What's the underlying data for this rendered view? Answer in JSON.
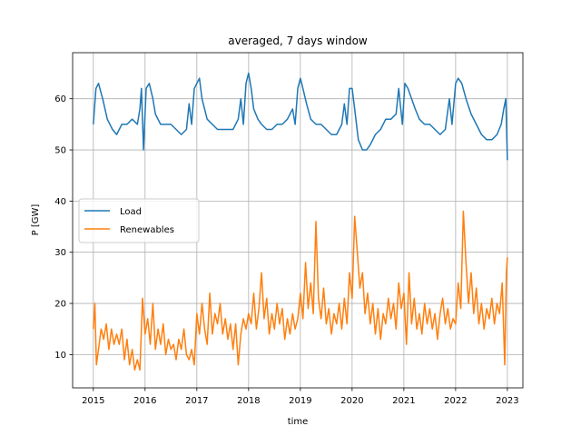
{
  "chart_data": {
    "type": "line",
    "title": "averaged, 7 days window",
    "xlabel": "time",
    "ylabel": "P [GW]",
    "xlim": [
      2014.6,
      2023.3
    ],
    "ylim": [
      3.5,
      69
    ],
    "grid": true,
    "legend": {
      "placement": "center-left",
      "entries": [
        "Load",
        "Renewables"
      ]
    },
    "xticks": [
      2015,
      2016,
      2017,
      2018,
      2019,
      2020,
      2021,
      2022,
      2023
    ],
    "xtick_labels": [
      "2015",
      "2016",
      "2017",
      "2018",
      "2019",
      "2020",
      "2021",
      "2022",
      "2023"
    ],
    "yticks": [
      10,
      20,
      30,
      40,
      50,
      60
    ],
    "ytick_labels": [
      "10",
      "20",
      "30",
      "40",
      "50",
      "60"
    ],
    "series": [
      {
        "name": "Load",
        "color": "#1f77b4",
        "x": [
          2015.0,
          2015.05,
          2015.1,
          2015.18,
          2015.27,
          2015.37,
          2015.45,
          2015.55,
          2015.65,
          2015.75,
          2015.85,
          2015.9,
          2015.93,
          2015.97,
          2016.02,
          2016.08,
          2016.15,
          2016.2,
          2016.3,
          2016.4,
          2016.5,
          2016.6,
          2016.7,
          2016.8,
          2016.85,
          2016.9,
          2016.95,
          2017.0,
          2017.05,
          2017.1,
          2017.2,
          2017.3,
          2017.4,
          2017.5,
          2017.6,
          2017.7,
          2017.8,
          2017.85,
          2017.9,
          2017.95,
          2018.0,
          2018.05,
          2018.1,
          2018.18,
          2018.25,
          2018.35,
          2018.45,
          2018.55,
          2018.65,
          2018.75,
          2018.85,
          2018.9,
          2018.95,
          2019.0,
          2019.05,
          2019.12,
          2019.2,
          2019.3,
          2019.4,
          2019.5,
          2019.6,
          2019.7,
          2019.8,
          2019.85,
          2019.9,
          2019.95,
          2020.0,
          2020.05,
          2020.12,
          2020.2,
          2020.28,
          2020.35,
          2020.45,
          2020.55,
          2020.65,
          2020.75,
          2020.85,
          2020.9,
          2020.97,
          2021.02,
          2021.08,
          2021.15,
          2021.22,
          2021.3,
          2021.4,
          2021.5,
          2021.6,
          2021.7,
          2021.8,
          2021.88,
          2021.93,
          2022.0,
          2022.05,
          2022.12,
          2022.2,
          2022.3,
          2022.4,
          2022.5,
          2022.6,
          2022.7,
          2022.8,
          2022.88,
          2022.93,
          2022.97,
          2023.0
        ],
        "y": [
          55,
          62,
          63,
          60,
          56,
          54,
          53,
          55,
          55,
          56,
          55,
          58,
          62,
          50,
          62,
          63,
          60,
          57,
          55,
          55,
          55,
          54,
          53,
          54,
          59,
          55,
          62,
          63,
          64,
          60,
          56,
          55,
          54,
          54,
          54,
          54,
          56,
          60,
          55,
          63,
          65,
          62,
          58,
          56,
          55,
          54,
          54,
          55,
          55,
          56,
          58,
          55,
          62,
          64,
          62,
          59,
          56,
          55,
          55,
          54,
          53,
          53,
          55,
          59,
          55,
          62,
          62,
          58,
          52,
          50,
          50,
          51,
          53,
          54,
          56,
          56,
          57,
          62,
          55,
          63,
          62,
          60,
          58,
          56,
          55,
          55,
          54,
          53,
          54,
          60,
          55,
          63,
          64,
          63,
          60,
          57,
          55,
          53,
          52,
          52,
          53,
          55,
          58,
          60,
          48
        ]
      },
      {
        "name": "Renewables",
        "color": "#ff7f0e",
        "x": [
          2015.0,
          2015.03,
          2015.06,
          2015.1,
          2015.15,
          2015.2,
          2015.25,
          2015.3,
          2015.35,
          2015.4,
          2015.45,
          2015.5,
          2015.55,
          2015.6,
          2015.65,
          2015.7,
          2015.75,
          2015.8,
          2015.85,
          2015.9,
          2015.95,
          2016.0,
          2016.05,
          2016.1,
          2016.15,
          2016.2,
          2016.25,
          2016.3,
          2016.35,
          2016.4,
          2016.45,
          2016.5,
          2016.55,
          2016.6,
          2016.65,
          2016.7,
          2016.75,
          2016.8,
          2016.85,
          2016.9,
          2016.95,
          2017.0,
          2017.05,
          2017.1,
          2017.15,
          2017.2,
          2017.25,
          2017.3,
          2017.35,
          2017.4,
          2017.45,
          2017.5,
          2017.55,
          2017.6,
          2017.65,
          2017.7,
          2017.75,
          2017.8,
          2017.85,
          2017.9,
          2017.95,
          2018.0,
          2018.05,
          2018.1,
          2018.15,
          2018.2,
          2018.25,
          2018.3,
          2018.35,
          2018.4,
          2018.45,
          2018.5,
          2018.55,
          2018.6,
          2018.65,
          2018.7,
          2018.75,
          2018.8,
          2018.85,
          2018.9,
          2018.95,
          2019.0,
          2019.05,
          2019.1,
          2019.15,
          2019.2,
          2019.25,
          2019.3,
          2019.35,
          2019.4,
          2019.45,
          2019.5,
          2019.55,
          2019.6,
          2019.65,
          2019.7,
          2019.75,
          2019.8,
          2019.85,
          2019.9,
          2019.95,
          2020.0,
          2020.05,
          2020.1,
          2020.15,
          2020.2,
          2020.25,
          2020.3,
          2020.35,
          2020.4,
          2020.45,
          2020.5,
          2020.55,
          2020.6,
          2020.65,
          2020.7,
          2020.75,
          2020.8,
          2020.85,
          2020.9,
          2020.95,
          2021.0,
          2021.05,
          2021.1,
          2021.15,
          2021.2,
          2021.25,
          2021.3,
          2021.35,
          2021.4,
          2021.45,
          2021.5,
          2021.55,
          2021.6,
          2021.65,
          2021.7,
          2021.75,
          2021.8,
          2021.85,
          2021.9,
          2021.95,
          2022.0,
          2022.05,
          2022.1,
          2022.15,
          2022.2,
          2022.25,
          2022.3,
          2022.35,
          2022.4,
          2022.45,
          2022.5,
          2022.55,
          2022.6,
          2022.65,
          2022.7,
          2022.75,
          2022.8,
          2022.85,
          2022.9,
          2022.95,
          2022.98,
          2023.0
        ],
        "y": [
          15,
          20,
          8,
          11,
          15,
          13,
          16,
          11,
          15,
          12,
          14,
          12,
          15,
          9,
          13,
          8,
          11,
          7,
          9,
          7,
          21,
          14,
          17,
          12,
          20,
          11,
          15,
          12,
          16,
          10,
          13,
          11,
          12,
          9,
          13,
          11,
          15,
          10,
          9,
          11,
          8,
          18,
          14,
          20,
          15,
          12,
          22,
          14,
          18,
          16,
          20,
          14,
          17,
          13,
          16,
          11,
          16,
          8,
          14,
          17,
          15,
          18,
          16,
          22,
          15,
          19,
          26,
          17,
          21,
          14,
          18,
          15,
          20,
          16,
          19,
          13,
          17,
          14,
          18,
          15,
          17,
          22,
          17,
          28,
          19,
          24,
          18,
          36,
          21,
          17,
          23,
          16,
          19,
          14,
          18,
          16,
          20,
          15,
          21,
          16,
          26,
          21,
          37,
          30,
          23,
          26,
          18,
          22,
          16,
          20,
          14,
          19,
          13,
          18,
          16,
          21,
          17,
          20,
          15,
          24,
          19,
          22,
          12,
          26,
          16,
          21,
          15,
          18,
          14,
          20,
          16,
          19,
          15,
          18,
          13,
          18,
          21,
          16,
          19,
          15,
          17,
          16,
          24,
          19,
          38,
          28,
          20,
          26,
          18,
          23,
          16,
          20,
          15,
          19,
          17,
          21,
          16,
          20,
          18,
          24,
          8,
          26,
          29
        ]
      }
    ]
  }
}
